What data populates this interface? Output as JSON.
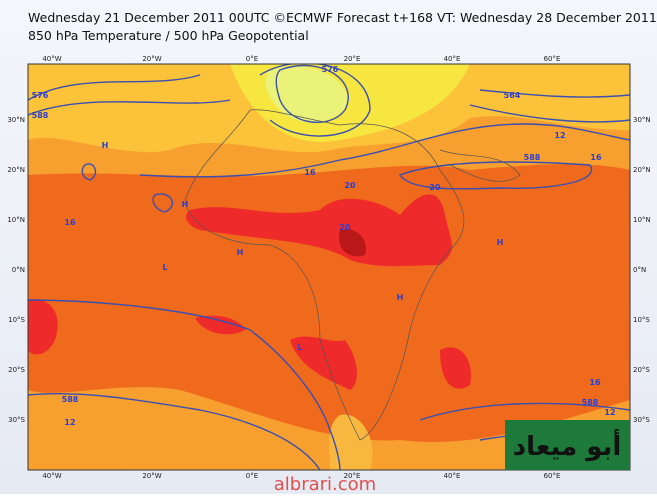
{
  "header": {
    "line1": "Wednesday 21 December 2011 00UTC ©ECMWF Forecast t+168 VT: Wednesday 28 December 2011 00UTC",
    "line2": "850 hPa Temperature / 500 hPa Geopotential"
  },
  "map": {
    "lon_labels": [
      "40°W",
      "20°W",
      "0°E",
      "20°E",
      "40°E",
      "60°E"
    ],
    "lat_labels": [
      "30°N",
      "20°N",
      "10°N",
      "0°N",
      "10°S",
      "20°S",
      "30°S"
    ],
    "contour_labels": [
      "576",
      "588",
      "16",
      "20",
      "576",
      "564",
      "12",
      "588",
      "16",
      "20",
      "20",
      "16",
      "588",
      "12",
      "16",
      "588",
      "12",
      "H",
      "H",
      "H",
      "L",
      "L",
      "H",
      "H"
    ]
  },
  "watermark": {
    "site": "albrari.com",
    "name": "أبو ميعاد"
  }
}
